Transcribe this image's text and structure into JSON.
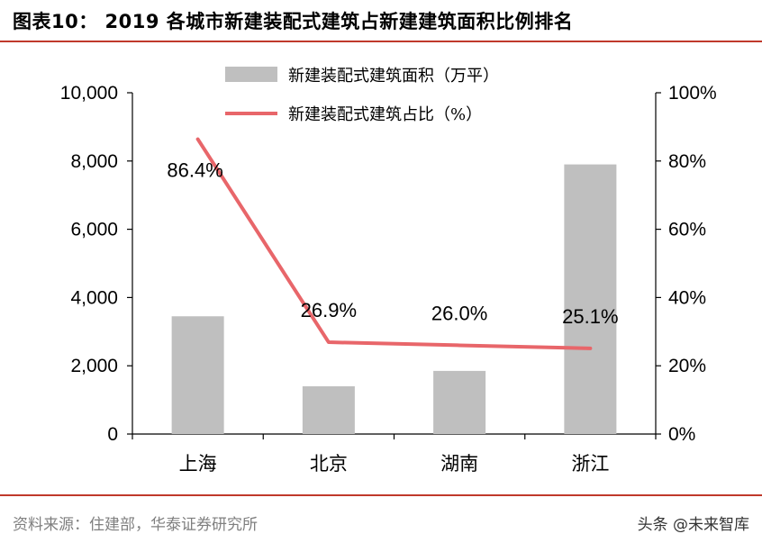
{
  "header": {
    "title": "图表10：   2019 各城市新建装配式建筑占新建建筑面积比例排名"
  },
  "footer": {
    "source": "资料来源：住建部，华泰证券研究所",
    "watermark": "头条 @未来智库"
  },
  "colors": {
    "bar": "#bfbfbf",
    "line": "#e8666a",
    "rule": "#c0392b"
  },
  "chart_data": {
    "type": "bar",
    "categories": [
      "上海",
      "北京",
      "湖南",
      "浙江"
    ],
    "series": [
      {
        "name": "新建装配式建筑面积（万平）",
        "type": "bar",
        "axis": "left",
        "values": [
          3450,
          1400,
          1850,
          7900
        ]
      },
      {
        "name": "新建装配式建筑占比（%）",
        "type": "line",
        "axis": "right",
        "values": [
          86.4,
          26.9,
          26.0,
          25.1
        ],
        "labels": [
          "86.4%",
          "26.9%",
          "26.0%",
          "25.1%"
        ]
      }
    ],
    "y_left": {
      "ylim": [
        0,
        10000
      ],
      "ticks": [
        0,
        2000,
        4000,
        6000,
        8000,
        10000
      ],
      "tick_labels": [
        "0",
        "2,000",
        "4,000",
        "6,000",
        "8,000",
        "10,000"
      ]
    },
    "y_right": {
      "ylim": [
        0,
        100
      ],
      "ticks": [
        0,
        20,
        40,
        60,
        80,
        100
      ],
      "tick_labels": [
        "0%",
        "20%",
        "40%",
        "60%",
        "80%",
        "100%"
      ]
    },
    "legend_position": "top",
    "grid": false
  }
}
